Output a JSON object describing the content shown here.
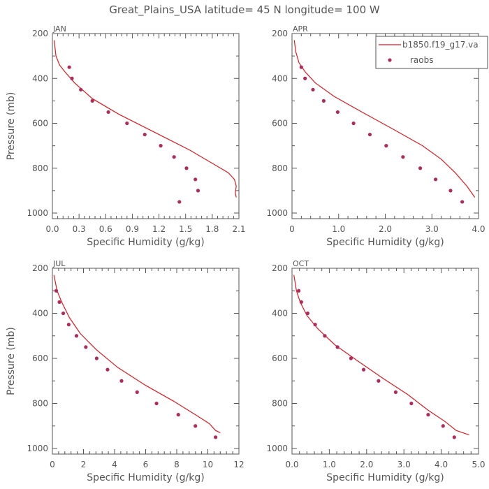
{
  "figure_title": "Great_Plains_USA   latitude= 45 N longitude= 100 W",
  "colors": {
    "model": "#e2181e",
    "obs": "#b22a5b",
    "axis": "#555555"
  },
  "chart_data": [
    {
      "type": "line",
      "panel": "JAN",
      "xlabel": "Specific Humidity (g/kg)",
      "ylabel": "Pressure (mb)",
      "xlim": [
        0,
        2.1
      ],
      "ylim": [
        200,
        1000
      ],
      "y_inverted": true,
      "xticks": [
        "0.0",
        "0.3",
        "0.6",
        "0.9",
        "1.2",
        "1.5",
        "1.8",
        "2.1"
      ],
      "yticks": [
        "200",
        "400",
        "600",
        "800",
        "1000"
      ],
      "series": [
        {
          "name": "b1850.f19_g17.va",
          "kind": "line",
          "x": [
            0.02,
            0.04,
            0.08,
            0.14,
            0.25,
            0.45,
            0.75,
            1.15,
            1.55,
            1.85,
            1.98,
            2.05,
            2.07,
            2.06,
            2.07
          ],
          "y": [
            230,
            300,
            340,
            370,
            420,
            490,
            560,
            640,
            720,
            790,
            820,
            850,
            880,
            910,
            930
          ]
        },
        {
          "name": "raobs",
          "kind": "scatter",
          "x": [
            0.19,
            0.22,
            0.32,
            0.45,
            0.63,
            0.84,
            1.04,
            1.22,
            1.37,
            1.51,
            1.61,
            1.64,
            1.43
          ],
          "y": [
            350,
            400,
            450,
            500,
            550,
            600,
            650,
            700,
            750,
            800,
            850,
            900,
            950
          ]
        }
      ]
    },
    {
      "type": "line",
      "panel": "APR",
      "xlabel": "Specific Humidity (g/kg)",
      "ylabel": "",
      "xlim": [
        0,
        4.0
      ],
      "ylim": [
        200,
        1000
      ],
      "y_inverted": true,
      "xticks": [
        "0",
        "1.0",
        "2.0",
        "3.0",
        "4.0"
      ],
      "yticks": [
        "200",
        "400",
        "600",
        "800",
        "1000"
      ],
      "legend": {
        "placement": "top-right"
      },
      "series": [
        {
          "name": "b1850.f19_g17.va",
          "kind": "line",
          "x": [
            0.05,
            0.08,
            0.15,
            0.28,
            0.5,
            0.9,
            1.5,
            2.2,
            2.8,
            3.2,
            3.5,
            3.75,
            3.92
          ],
          "y": [
            230,
            280,
            330,
            370,
            420,
            480,
            550,
            630,
            700,
            760,
            820,
            880,
            930
          ]
        },
        {
          "name": "raobs",
          "kind": "scatter",
          "x": [
            0.2,
            0.28,
            0.45,
            0.68,
            0.98,
            1.32,
            1.67,
            2.02,
            2.38,
            2.75,
            3.08,
            3.4,
            3.65
          ],
          "y": [
            350,
            400,
            450,
            500,
            550,
            600,
            650,
            700,
            750,
            800,
            850,
            900,
            950
          ]
        }
      ]
    },
    {
      "type": "line",
      "panel": "JUL",
      "xlabel": "Specific Humidity (g/kg)",
      "ylabel": "Pressure (mb)",
      "xlim": [
        0,
        12
      ],
      "ylim": [
        200,
        1000
      ],
      "y_inverted": true,
      "xticks": [
        "0",
        "2",
        "4",
        "6",
        "8",
        "10",
        "12"
      ],
      "yticks": [
        "200",
        "400",
        "600",
        "800",
        "1000"
      ],
      "series": [
        {
          "name": "b1850.f19_g17.va",
          "kind": "line",
          "x": [
            0.1,
            0.3,
            0.6,
            1.1,
            1.8,
            2.8,
            4.2,
            6.0,
            7.8,
            9.2,
            10.1,
            10.5,
            10.8
          ],
          "y": [
            230,
            300,
            350,
            420,
            490,
            560,
            640,
            720,
            790,
            850,
            890,
            920,
            930
          ]
        },
        {
          "name": "raobs",
          "kind": "scatter",
          "x": [
            0.25,
            0.45,
            0.7,
            1.05,
            1.55,
            2.15,
            2.85,
            3.55,
            4.45,
            5.45,
            6.7,
            8.1,
            9.2,
            10.5
          ],
          "y": [
            300,
            350,
            400,
            450,
            500,
            550,
            600,
            650,
            700,
            750,
            800,
            850,
            900,
            950
          ]
        }
      ]
    },
    {
      "type": "line",
      "panel": "OCT",
      "xlabel": "Specific Humidity (g/kg)",
      "ylabel": "",
      "xlim": [
        0,
        5.0
      ],
      "ylim": [
        200,
        1000
      ],
      "y_inverted": true,
      "xticks": [
        "0.0",
        "1.0",
        "2.0",
        "3.0",
        "4.0",
        "5.0"
      ],
      "yticks": [
        "200",
        "400",
        "600",
        "800",
        "1000"
      ],
      "series": [
        {
          "name": "b1850.f19_g17.va",
          "kind": "line",
          "x": [
            0.05,
            0.12,
            0.22,
            0.4,
            0.7,
            1.15,
            1.75,
            2.45,
            3.1,
            3.65,
            4.1,
            4.4,
            4.75
          ],
          "y": [
            230,
            300,
            350,
            410,
            470,
            540,
            610,
            690,
            760,
            830,
            880,
            920,
            940
          ]
        },
        {
          "name": "raobs",
          "kind": "scatter",
          "x": [
            0.18,
            0.25,
            0.42,
            0.62,
            0.88,
            1.22,
            1.58,
            1.92,
            2.32,
            2.78,
            3.2,
            3.65,
            4.05,
            4.35
          ],
          "y": [
            300,
            350,
            400,
            450,
            500,
            550,
            600,
            650,
            700,
            750,
            800,
            850,
            900,
            950
          ]
        }
      ]
    }
  ]
}
